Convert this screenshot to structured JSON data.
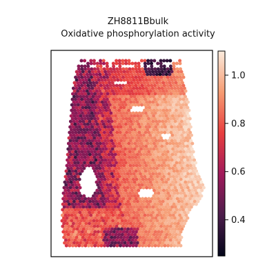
{
  "chart_data": {
    "type": "heatmap",
    "title_lines": [
      "ZH8811Bbulk",
      "Oxidative phosphorylation activity"
    ],
    "xlabel": "",
    "ylabel": "",
    "colorbar": {
      "min": 0.25,
      "max": 1.1,
      "ticks": [
        0.4,
        0.6,
        0.8,
        1.0
      ],
      "tick_labels": [
        "0.4",
        "0.6",
        "0.8",
        "1.0"
      ],
      "colormap": "rocket",
      "colors": [
        "#03051a",
        "#4c1d4b",
        "#a11a5b",
        "#e83f3f",
        "#f69c73",
        "#faebdd"
      ]
    },
    "description_regions": {
      "left_band": "mostly low values 0.3-0.6 with scattered medium",
      "right_bulk": "high values 0.8-1.05",
      "bottom_left": "medium-high 0.75-0.9",
      "holes": "gaps at left middle and right middle"
    }
  }
}
